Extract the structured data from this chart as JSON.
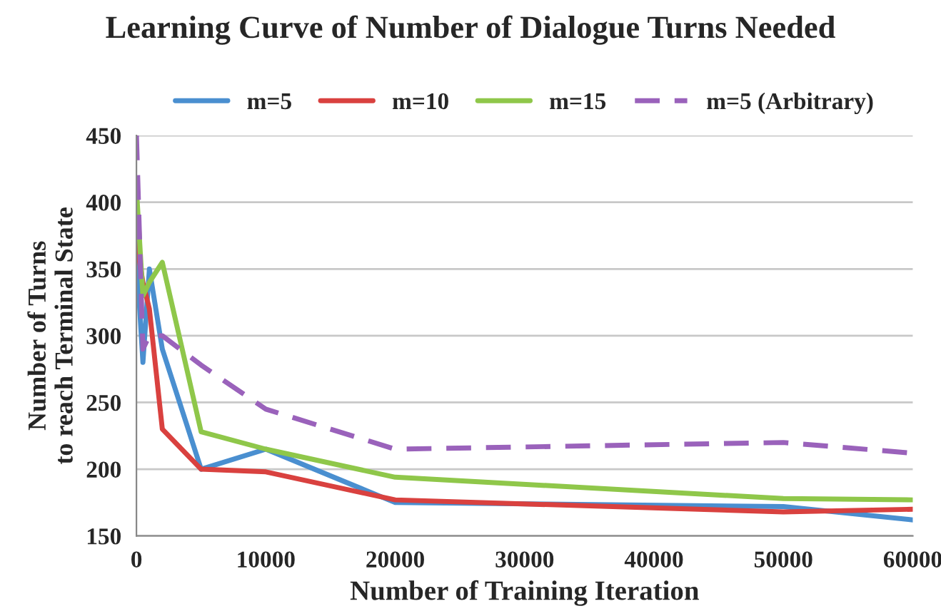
{
  "chart_data": {
    "type": "line",
    "title": "Learning Curve of Number of Dialogue Turns Needed",
    "xlabel": "Number of Training Iteration",
    "ylabel": "Number of Turns\nto reach Terminal State",
    "x": [
      0,
      500,
      1000,
      2000,
      5000,
      10000,
      20000,
      50000,
      60000
    ],
    "series": [
      {
        "name": "m=5",
        "color": "#4a8fd0",
        "values": [
          360,
          280,
          350,
          290,
          200,
          215,
          175,
          172,
          162
        ]
      },
      {
        "name": "m=10",
        "color": "#d9413f",
        "values": [
          370,
          340,
          320,
          230,
          200,
          198,
          177,
          168,
          170
        ]
      },
      {
        "name": "m=15",
        "color": "#8fc74a",
        "values": [
          410,
          330,
          340,
          355,
          228,
          215,
          194,
          178,
          177
        ]
      },
      {
        "name": "m=5 (Arbitrary)",
        "color": "#9a62bb",
        "values": [
          450,
          290,
          300,
          300,
          278,
          245,
          215,
          220,
          212
        ],
        "line_style": "dashed"
      }
    ],
    "xlim": [
      0,
      60000
    ],
    "xticks": [
      0,
      10000,
      20000,
      30000,
      40000,
      50000,
      60000
    ],
    "ylim": [
      150,
      450
    ],
    "yticks": [
      150,
      200,
      250,
      300,
      350,
      400,
      450
    ],
    "grid": "y",
    "legend": "top",
    "marker": "none"
  }
}
